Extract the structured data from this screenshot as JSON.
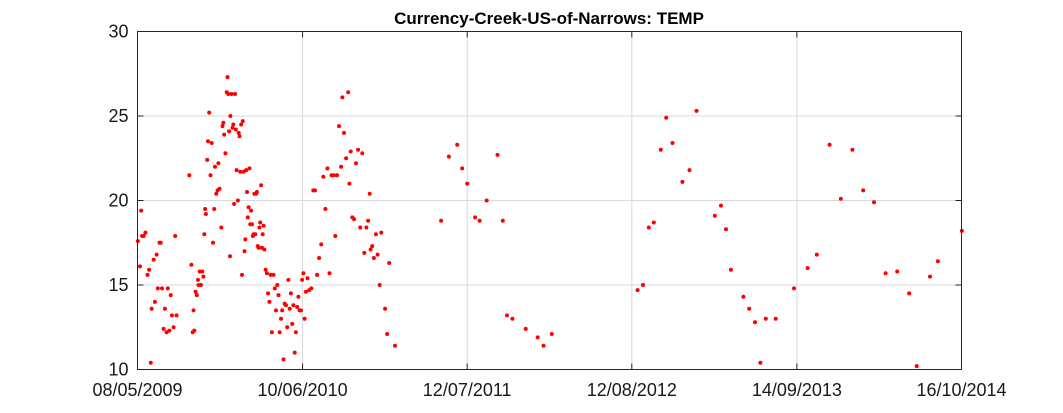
{
  "chart_data": {
    "type": "scatter",
    "title": "Currency-Creek-US-of-Narrows: TEMP",
    "xlabel": "",
    "ylabel": "",
    "x_tick_labels": [
      "08/05/2009",
      "10/06/2010",
      "12/07/2011",
      "12/08/2012",
      "14/09/2013",
      "16/10/2014"
    ],
    "x_ticks": [
      "2009-05-08",
      "2010-06-10",
      "2011-07-12",
      "2012-08-12",
      "2013-09-14",
      "2014-10-16"
    ],
    "xlim": [
      "2009-05-08",
      "2014-10-16"
    ],
    "y_ticks": [
      10,
      15,
      20,
      25,
      30
    ],
    "ylim": [
      10,
      30
    ],
    "grid": true,
    "marker_color": "#ff0000",
    "series": [
      {
        "points": [
          [
            "2009-05-09",
            17.6
          ],
          [
            "2009-05-14",
            16.1
          ],
          [
            "2009-05-17",
            19.4
          ],
          [
            "2009-05-19",
            17.9
          ],
          [
            "2009-05-23",
            17.9
          ],
          [
            "2009-05-27",
            18.1
          ],
          [
            "2009-06-01",
            15.6
          ],
          [
            "2009-06-05",
            15.9
          ],
          [
            "2009-06-09",
            10.4
          ],
          [
            "2009-06-11",
            13.6
          ],
          [
            "2009-06-16",
            16.5
          ],
          [
            "2009-06-19",
            14.0
          ],
          [
            "2009-06-23",
            16.8
          ],
          [
            "2009-06-26",
            14.8
          ],
          [
            "2009-06-30",
            17.5
          ],
          [
            "2009-07-03",
            17.5
          ],
          [
            "2009-07-06",
            14.8
          ],
          [
            "2009-07-10",
            12.4
          ],
          [
            "2009-07-13",
            13.6
          ],
          [
            "2009-07-17",
            12.2
          ],
          [
            "2009-07-20",
            14.8
          ],
          [
            "2009-07-24",
            12.3
          ],
          [
            "2009-07-27",
            14.4
          ],
          [
            "2009-07-30",
            13.2
          ],
          [
            "2009-08-03",
            12.5
          ],
          [
            "2009-08-07",
            17.9
          ],
          [
            "2009-08-10",
            13.2
          ],
          [
            "2009-09-10",
            21.5
          ],
          [
            "2009-09-15",
            16.2
          ],
          [
            "2009-09-18",
            12.2
          ],
          [
            "2009-09-20",
            13.5
          ],
          [
            "2009-09-22",
            12.3
          ],
          [
            "2009-09-25",
            14.6
          ],
          [
            "2009-09-28",
            14.4
          ],
          [
            "2009-10-01",
            15.3
          ],
          [
            "2009-10-02",
            15.0
          ],
          [
            "2009-10-05",
            15.8
          ],
          [
            "2009-10-08",
            15.0
          ],
          [
            "2009-10-11",
            15.8
          ],
          [
            "2009-10-14",
            15.5
          ],
          [
            "2009-10-16",
            18.0
          ],
          [
            "2009-10-18",
            19.5
          ],
          [
            "2009-10-20",
            19.2
          ],
          [
            "2009-10-23",
            22.4
          ],
          [
            "2009-10-25",
            23.5
          ],
          [
            "2009-10-28",
            25.2
          ],
          [
            "2009-10-31",
            21.5
          ],
          [
            "2009-11-03",
            23.4
          ],
          [
            "2009-11-06",
            17.5
          ],
          [
            "2009-11-09",
            19.5
          ],
          [
            "2009-11-11",
            22.0
          ],
          [
            "2009-11-14",
            20.4
          ],
          [
            "2009-11-17",
            20.6
          ],
          [
            "2009-11-19",
            22.2
          ],
          [
            "2009-11-22",
            20.7
          ],
          [
            "2009-11-26",
            18.4
          ],
          [
            "2009-11-29",
            24.4
          ],
          [
            "2009-12-01",
            24.6
          ],
          [
            "2009-12-03",
            23.9
          ],
          [
            "2009-12-06",
            22.8
          ],
          [
            "2009-12-09",
            26.4
          ],
          [
            "2009-12-11",
            27.3
          ],
          [
            "2009-12-13",
            26.3
          ],
          [
            "2009-12-15",
            24.1
          ],
          [
            "2009-12-17",
            16.7
          ],
          [
            "2009-12-18",
            25.0
          ],
          [
            "2009-12-21",
            26.3
          ],
          [
            "2009-12-23",
            24.3
          ],
          [
            "2009-12-25",
            24.5
          ],
          [
            "2009-12-27",
            19.8
          ],
          [
            "2009-12-29",
            26.3
          ],
          [
            "2009-12-31",
            24.2
          ],
          [
            "2010-01-02",
            21.8
          ],
          [
            "2010-01-05",
            20.0
          ],
          [
            "2010-01-07",
            24.0
          ],
          [
            "2010-01-09",
            23.8
          ],
          [
            "2010-01-11",
            21.7
          ],
          [
            "2010-01-13",
            24.5
          ],
          [
            "2010-01-15",
            15.6
          ],
          [
            "2010-01-17",
            24.7
          ],
          [
            "2010-01-19",
            21.7
          ],
          [
            "2010-01-21",
            17.0
          ],
          [
            "2010-01-23",
            17.7
          ],
          [
            "2010-01-25",
            21.8
          ],
          [
            "2010-01-27",
            20.5
          ],
          [
            "2010-01-29",
            19.0
          ],
          [
            "2010-01-31",
            19.6
          ],
          [
            "2010-02-02",
            21.9
          ],
          [
            "2010-02-04",
            18.6
          ],
          [
            "2010-02-06",
            19.4
          ],
          [
            "2010-02-08",
            18.6
          ],
          [
            "2010-02-10",
            17.9
          ],
          [
            "2010-02-12",
            18.0
          ],
          [
            "2010-02-14",
            20.4
          ],
          [
            "2010-02-16",
            18.0
          ],
          [
            "2010-02-18",
            20.4
          ],
          [
            "2010-02-20",
            20.5
          ],
          [
            "2010-02-22",
            17.3
          ],
          [
            "2010-02-24",
            17.2
          ],
          [
            "2010-02-26",
            18.4
          ],
          [
            "2010-02-28",
            18.7
          ],
          [
            "2010-03-02",
            20.9
          ],
          [
            "2010-03-04",
            17.2
          ],
          [
            "2010-03-06",
            18.0
          ],
          [
            "2010-03-08",
            18.5
          ],
          [
            "2010-03-10",
            17.1
          ],
          [
            "2010-03-13",
            15.9
          ],
          [
            "2010-03-16",
            15.7
          ],
          [
            "2010-03-19",
            14.5
          ],
          [
            "2010-03-22",
            14.0
          ],
          [
            "2010-03-25",
            15.6
          ],
          [
            "2010-03-28",
            12.2
          ],
          [
            "2010-04-01",
            15.6
          ],
          [
            "2010-04-04",
            14.8
          ],
          [
            "2010-04-07",
            13.5
          ],
          [
            "2010-04-10",
            15.0
          ],
          [
            "2010-04-13",
            14.4
          ],
          [
            "2010-04-16",
            12.2
          ],
          [
            "2010-04-19",
            13.0
          ],
          [
            "2010-04-22",
            13.5
          ],
          [
            "2010-04-25",
            10.6
          ],
          [
            "2010-04-28",
            13.9
          ],
          [
            "2010-05-01",
            13.8
          ],
          [
            "2010-05-04",
            12.5
          ],
          [
            "2010-05-07",
            15.3
          ],
          [
            "2010-05-10",
            13.6
          ],
          [
            "2010-05-13",
            14.5
          ],
          [
            "2010-05-16",
            12.7
          ],
          [
            "2010-05-19",
            13.8
          ],
          [
            "2010-05-22",
            11.0
          ],
          [
            "2010-05-25",
            12.2
          ],
          [
            "2010-05-28",
            13.7
          ],
          [
            "2010-05-31",
            14.3
          ],
          [
            "2010-06-03",
            13.5
          ],
          [
            "2010-06-06",
            13.5
          ],
          [
            "2010-06-09",
            15.3
          ],
          [
            "2010-06-12",
            15.7
          ],
          [
            "2010-06-15",
            13.0
          ],
          [
            "2010-06-18",
            14.6
          ],
          [
            "2010-06-22",
            15.4
          ],
          [
            "2010-06-26",
            14.7
          ],
          [
            "2010-07-01",
            14.8
          ],
          [
            "2010-07-06",
            20.6
          ],
          [
            "2010-07-10",
            20.6
          ],
          [
            "2010-07-15",
            15.6
          ],
          [
            "2010-07-20",
            16.6
          ],
          [
            "2010-07-25",
            17.4
          ],
          [
            "2010-07-30",
            21.4
          ],
          [
            "2010-08-04",
            19.5
          ],
          [
            "2010-08-09",
            21.9
          ],
          [
            "2010-08-14",
            15.7
          ],
          [
            "2010-08-19",
            21.5
          ],
          [
            "2010-08-24",
            21.5
          ],
          [
            "2010-08-28",
            17.9
          ],
          [
            "2010-09-01",
            21.5
          ],
          [
            "2010-09-06",
            24.4
          ],
          [
            "2010-09-11",
            22.0
          ],
          [
            "2010-09-14",
            26.1
          ],
          [
            "2010-09-18",
            24.0
          ],
          [
            "2010-09-23",
            22.5
          ],
          [
            "2010-09-28",
            26.4
          ],
          [
            "2010-10-01",
            21.0
          ],
          [
            "2010-10-04",
            22.9
          ],
          [
            "2010-10-08",
            19.0
          ],
          [
            "2010-10-12",
            18.9
          ],
          [
            "2010-10-17",
            22.2
          ],
          [
            "2010-10-22",
            23.0
          ],
          [
            "2010-10-27",
            18.4
          ],
          [
            "2010-11-01",
            22.8
          ],
          [
            "2010-11-06",
            16.9
          ],
          [
            "2010-11-11",
            18.4
          ],
          [
            "2010-11-15",
            18.8
          ],
          [
            "2010-11-19",
            20.4
          ],
          [
            "2010-11-21",
            17.1
          ],
          [
            "2010-11-25",
            17.3
          ],
          [
            "2010-11-29",
            16.6
          ],
          [
            "2010-12-04",
            18.0
          ],
          [
            "2010-12-08",
            16.8
          ],
          [
            "2010-12-13",
            15.0
          ],
          [
            "2010-12-17",
            18.1
          ],
          [
            "2010-12-26",
            13.6
          ],
          [
            "2010-12-31",
            12.1
          ],
          [
            "2011-01-05",
            16.3
          ],
          [
            "2011-01-19",
            11.4
          ],
          [
            "2011-05-10",
            18.8
          ],
          [
            "2011-05-29",
            22.6
          ],
          [
            "2011-06-18",
            23.3
          ],
          [
            "2011-06-30",
            21.9
          ],
          [
            "2011-07-12",
            21.0
          ],
          [
            "2011-07-31",
            19.0
          ],
          [
            "2011-08-11",
            18.8
          ],
          [
            "2011-08-28",
            20.0
          ],
          [
            "2011-09-23",
            22.7
          ],
          [
            "2011-10-06",
            18.8
          ],
          [
            "2011-10-16",
            13.2
          ],
          [
            "2011-10-29",
            13.0
          ],
          [
            "2011-11-30",
            12.4
          ],
          [
            "2011-12-29",
            11.9
          ],
          [
            "2012-01-12",
            11.4
          ],
          [
            "2012-02-01",
            12.1
          ],
          [
            "2012-08-26",
            14.7
          ],
          [
            "2012-09-08",
            15.0
          ],
          [
            "2012-09-22",
            18.4
          ],
          [
            "2012-10-04",
            18.7
          ],
          [
            "2012-10-21",
            23.0
          ],
          [
            "2012-11-03",
            24.9
          ],
          [
            "2012-11-18",
            23.4
          ],
          [
            "2012-12-12",
            21.1
          ],
          [
            "2012-12-29",
            21.8
          ],
          [
            "2013-01-15",
            25.3
          ],
          [
            "2013-02-28",
            19.1
          ],
          [
            "2013-03-15",
            19.7
          ],
          [
            "2013-03-27",
            18.3
          ],
          [
            "2013-04-08",
            15.9
          ],
          [
            "2013-05-08",
            14.3
          ],
          [
            "2013-05-22",
            13.6
          ],
          [
            "2013-06-05",
            12.8
          ],
          [
            "2013-06-18",
            10.4
          ],
          [
            "2013-07-01",
            13.0
          ],
          [
            "2013-07-25",
            13.0
          ],
          [
            "2013-09-07",
            14.8
          ],
          [
            "2013-10-10",
            16.0
          ],
          [
            "2013-11-01",
            16.8
          ],
          [
            "2013-12-02",
            23.3
          ],
          [
            "2013-12-29",
            20.1
          ],
          [
            "2014-01-26",
            23.0
          ],
          [
            "2014-02-21",
            20.6
          ],
          [
            "2014-03-19",
            19.9
          ],
          [
            "2014-04-16",
            15.7
          ],
          [
            "2014-05-14",
            15.8
          ],
          [
            "2014-06-12",
            14.5
          ],
          [
            "2014-06-30",
            10.2
          ],
          [
            "2014-08-01",
            15.5
          ],
          [
            "2014-08-20",
            16.4
          ],
          [
            "2014-10-17",
            18.2
          ]
        ]
      }
    ]
  }
}
